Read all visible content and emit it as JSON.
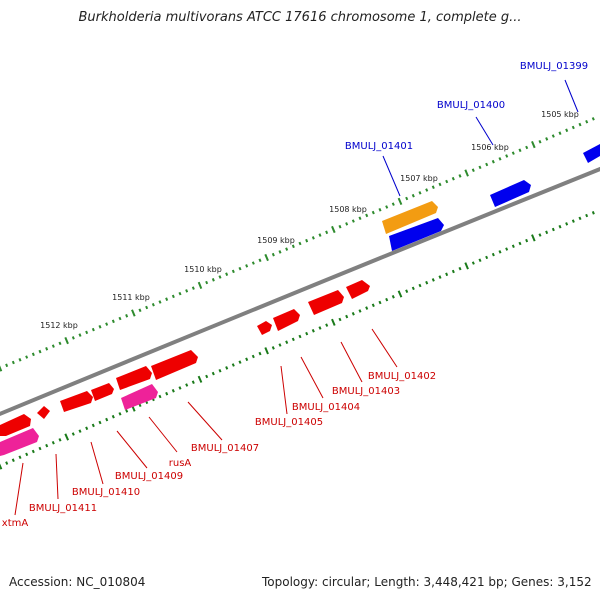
{
  "title": "Burkholderia multivorans ATCC 17616 chromosome 1, complete g...",
  "footer": {
    "accession": "Accession: NC_010804",
    "summary": "Topology: circular; Length: 3,448,421 bp; Genes: 3,152"
  },
  "colors": {
    "backbone": "#808080",
    "tick_forward": "#2e8b2e",
    "tick_reverse": "#1a7a1a",
    "forward_label": "#0000cc",
    "reverse_label": "#cc0000",
    "blue_gene": "#0000ee",
    "orange_gene": "#f39c12",
    "red_gene": "#ee0000",
    "pink_gene": "#ee2299"
  },
  "kbp_labels": [
    "1505 kbp",
    "1506 kbp",
    "1507 kbp",
    "1508 kbp",
    "1509 kbp",
    "1510 kbp",
    "1511 kbp",
    "1512 kbp"
  ],
  "forward_gene_labels": [
    "BMULJ_01399",
    "BMULJ_01400",
    "BMULJ_01401"
  ],
  "reverse_gene_labels": [
    "BMULJ_01402",
    "BMULJ_01403",
    "BMULJ_01404",
    "BMULJ_01405",
    "BMULJ_01407",
    "rusA",
    "BMULJ_01409",
    "BMULJ_01410",
    "BMULJ_01411",
    "xtmA"
  ]
}
